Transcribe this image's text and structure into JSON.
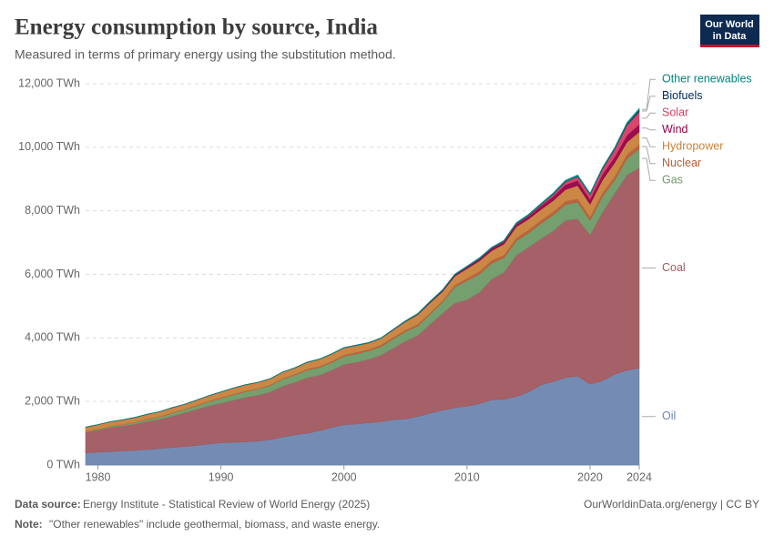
{
  "chart_data": {
    "type": "stacked-area",
    "title": "Energy consumption by source, India",
    "subtitle": "Measured in terms of primary energy using the substitution method.",
    "logo": [
      "Our World",
      "in Data"
    ],
    "source_label": "Data source:",
    "source": "Energy Institute - Statistical Review of World Energy (2025)",
    "credit": "OurWorldinData.org/energy | CC BY",
    "note_label": "Note:",
    "note": "\"Other renewables\" include geothermal, biomass, and waste energy.",
    "x": [
      1979,
      1980,
      1981,
      1982,
      1983,
      1984,
      1985,
      1986,
      1987,
      1988,
      1989,
      1990,
      1991,
      1992,
      1993,
      1994,
      1995,
      1996,
      1997,
      1998,
      1999,
      2000,
      2001,
      2002,
      2003,
      2004,
      2005,
      2006,
      2007,
      2008,
      2009,
      2010,
      2011,
      2012,
      2013,
      2014,
      2015,
      2016,
      2017,
      2018,
      2019,
      2020,
      2021,
      2022,
      2023,
      2024
    ],
    "xlim": [
      1979,
      2024
    ],
    "xticks": [
      1980,
      1990,
      2000,
      2010,
      2020,
      2024
    ],
    "ylim": [
      0,
      12000
    ],
    "yticks": [
      {
        "value": 0,
        "label": "0 TWh"
      },
      {
        "value": 2000,
        "label": "2,000 TWh"
      },
      {
        "value": 4000,
        "label": "4,000 TWh"
      },
      {
        "value": 6000,
        "label": "6,000 TWh"
      },
      {
        "value": 8000,
        "label": "8,000 TWh"
      },
      {
        "value": 10000,
        "label": "10,000 TWh"
      },
      {
        "value": 12000,
        "label": "12,000 TWh"
      }
    ],
    "grid": true,
    "series": [
      {
        "name": "Oil",
        "color": "#6d86b0",
        "values": [
          380,
          400,
          420,
          440,
          460,
          490,
          520,
          550,
          580,
          620,
          660,
          700,
          710,
          730,
          750,
          800,
          880,
          950,
          1000,
          1080,
          1180,
          1270,
          1290,
          1330,
          1360,
          1430,
          1450,
          1530,
          1630,
          1720,
          1800,
          1850,
          1930,
          2050,
          2070,
          2150,
          2300,
          2520,
          2620,
          2750,
          2800,
          2550,
          2650,
          2850,
          2980,
          3050
        ]
      },
      {
        "name": "Coal",
        "color": "#a0585f",
        "values": [
          650,
          700,
          760,
          790,
          830,
          880,
          920,
          990,
          1060,
          1130,
          1200,
          1250,
          1330,
          1400,
          1450,
          1500,
          1600,
          1650,
          1750,
          1750,
          1800,
          1900,
          1950,
          2000,
          2100,
          2250,
          2450,
          2550,
          2800,
          3050,
          3300,
          3350,
          3500,
          3800,
          4000,
          4450,
          4550,
          4600,
          4750,
          4950,
          4950,
          4700,
          5300,
          5700,
          6150,
          6300
        ]
      },
      {
        "name": "Gas",
        "color": "#6e9a67",
        "values": [
          20,
          25,
          30,
          40,
          50,
          60,
          70,
          90,
          100,
          110,
          130,
          150,
          170,
          180,
          190,
          200,
          220,
          230,
          240,
          240,
          250,
          250,
          260,
          260,
          270,
          290,
          300,
          300,
          320,
          350,
          500,
          600,
          580,
          500,
          450,
          450,
          450,
          480,
          500,
          500,
          520,
          450,
          500,
          420,
          520,
          600
        ]
      },
      {
        "name": "Nuclear",
        "color": "#b75c36",
        "values": [
          10,
          10,
          10,
          10,
          10,
          15,
          15,
          15,
          15,
          20,
          20,
          20,
          20,
          20,
          20,
          20,
          20,
          25,
          30,
          35,
          35,
          45,
          50,
          50,
          50,
          50,
          50,
          50,
          45,
          45,
          60,
          80,
          85,
          95,
          90,
          95,
          100,
          100,
          100,
          100,
          115,
          110,
          115,
          115,
          125,
          140
        ]
      },
      {
        "name": "Hydropower",
        "color": "#c8813c",
        "values": [
          130,
          135,
          140,
          140,
          145,
          150,
          150,
          155,
          150,
          160,
          170,
          180,
          190,
          195,
          190,
          195,
          200,
          200,
          210,
          220,
          225,
          220,
          210,
          200,
          200,
          230,
          260,
          300,
          310,
          290,
          280,
          300,
          330,
          300,
          340,
          350,
          340,
          340,
          350,
          370,
          410,
          400,
          400,
          430,
          390,
          400
        ]
      },
      {
        "name": "Wind",
        "color": "#970046",
        "values": [
          0,
          0,
          0,
          0,
          0,
          0,
          0,
          0,
          0,
          0,
          0,
          0,
          0,
          0,
          0,
          0,
          1,
          2,
          2,
          3,
          3,
          4,
          4,
          5,
          6,
          8,
          12,
          18,
          25,
          30,
          40,
          50,
          60,
          70,
          75,
          80,
          85,
          110,
          130,
          150,
          160,
          150,
          170,
          180,
          210,
          230
        ]
      },
      {
        "name": "Solar",
        "color": "#d73c63",
        "values": [
          0,
          0,
          0,
          0,
          0,
          0,
          0,
          0,
          0,
          0,
          0,
          0,
          0,
          0,
          0,
          0,
          0,
          0,
          0,
          0,
          0,
          0,
          0,
          0,
          0,
          0,
          0,
          0,
          0,
          0,
          0,
          1,
          2,
          5,
          8,
          12,
          20,
          35,
          60,
          90,
          120,
          140,
          170,
          230,
          320,
          400
        ]
      },
      {
        "name": "Biofuels",
        "color": "#00295b",
        "values": [
          0,
          0,
          0,
          0,
          0,
          0,
          0,
          0,
          0,
          0,
          0,
          0,
          0,
          0,
          0,
          0,
          0,
          0,
          0,
          0,
          0,
          0,
          0,
          0,
          1,
          1,
          1,
          2,
          2,
          3,
          3,
          3,
          4,
          4,
          5,
          5,
          6,
          6,
          7,
          8,
          9,
          8,
          10,
          15,
          25,
          40
        ]
      },
      {
        "name": "Other renewables",
        "color": "#00847e",
        "values": [
          5,
          5,
          5,
          5,
          5,
          5,
          5,
          5,
          5,
          5,
          5,
          5,
          5,
          5,
          6,
          6,
          7,
          8,
          9,
          10,
          11,
          12,
          13,
          14,
          15,
          16,
          18,
          20,
          22,
          24,
          26,
          28,
          30,
          32,
          34,
          36,
          38,
          40,
          42,
          44,
          46,
          46,
          48,
          52,
          56,
          60
        ]
      }
    ]
  }
}
